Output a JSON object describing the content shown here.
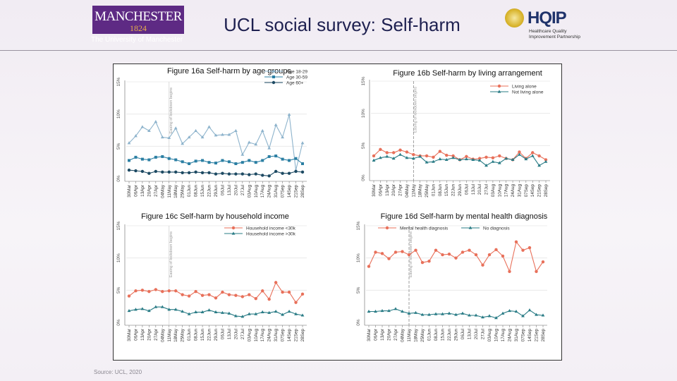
{
  "header": {
    "title": "UCL social survey: Self-harm",
    "logo_left": {
      "wordmark": "MANCHESTER",
      "year": "1824",
      "subtitle": "The University of Manchester"
    },
    "logo_right": {
      "wordmark": "HQIP",
      "subtitle": "Healthcare Quality Improvement Partnership"
    }
  },
  "footer": {
    "source": "Source: UCL, 2020"
  },
  "colors": {
    "orange": "#e8705a",
    "teal": "#2a7c86",
    "light_blue": "#8db3cc",
    "mid_blue": "#2b7fa3",
    "dark_blue": "#1d4a63"
  },
  "chart_data": [
    {
      "type": "line",
      "title": "Figure 16a Self-harm by age groups",
      "categories": [
        "30Mar",
        "06Apr",
        "13Apr",
        "20Apr",
        "27Apr",
        "04May",
        "11May",
        "18May",
        "25May",
        "01Jun",
        "08Jun",
        "15Jun",
        "22Jun",
        "29Jun",
        "06Jul",
        "13Jul",
        "20Jul",
        "27Jul",
        "03Aug",
        "10Aug",
        "17Aug",
        "24Aug",
        "31Aug",
        "07Sep",
        "14Sep",
        "21Sep",
        "28Sep"
      ],
      "yticks": [
        "0%",
        "5%",
        "10%",
        "15%"
      ],
      "ylim": [
        0,
        15
      ],
      "grid": true,
      "legend": "top-right",
      "annotation": {
        "text": "Easing of lockdown begins",
        "at": "11May"
      },
      "series": [
        {
          "name": "Age 18-29",
          "color": "#8db3cc",
          "marker": "triangle",
          "values": [
            5.5,
            6.6,
            8.0,
            7.4,
            8.8,
            6.4,
            6.3,
            7.8,
            5.4,
            6.4,
            7.4,
            6.4,
            8.0,
            6.7,
            6.8,
            6.8,
            7.4,
            3.7,
            5.6,
            5.3,
            7.4,
            4.7,
            8.3,
            6.4,
            9.9,
            1.3,
            5.5
          ]
        },
        {
          "name": "Age 30-59",
          "color": "#2b7fa3",
          "marker": "square",
          "values": [
            2.8,
            3.3,
            3.0,
            2.9,
            3.3,
            3.4,
            3.1,
            2.9,
            2.6,
            2.3,
            2.7,
            2.8,
            2.5,
            2.4,
            2.8,
            2.6,
            2.3,
            2.5,
            2.8,
            2.5,
            2.8,
            3.4,
            3.5,
            3.0,
            2.8,
            3.1,
            2.3
          ]
        },
        {
          "name": "Age 60+",
          "color": "#1d4a63",
          "marker": "circle",
          "values": [
            1.3,
            1.2,
            1.1,
            0.8,
            1.1,
            1.0,
            1.0,
            1.0,
            0.9,
            0.9,
            1.0,
            0.9,
            0.9,
            0.7,
            0.8,
            0.7,
            0.7,
            0.7,
            0.6,
            0.7,
            0.5,
            0.4,
            1.1,
            0.8,
            0.8,
            1.1,
            1.0
          ]
        }
      ]
    },
    {
      "type": "line",
      "title": "Figure 16b Self-harm by living arrangement",
      "categories": [
        "30Mar",
        "06Apr",
        "13Apr",
        "20Apr",
        "27Apr",
        "04May",
        "11May",
        "18May",
        "25May",
        "01Jun",
        "08Jun",
        "15Jun",
        "22Jun",
        "29Jun",
        "06Jul",
        "13Jul",
        "20Jul",
        "27Jul",
        "03Aug",
        "10Aug",
        "17Aug",
        "24Aug",
        "31Aug",
        "07Sep",
        "14Sep",
        "21Sep",
        "28Sep"
      ],
      "yticks": [
        "0%",
        "5%",
        "10%",
        "15%"
      ],
      "ylim": [
        0,
        15
      ],
      "grid": true,
      "legend": "top-right",
      "annotation": {
        "text": "Easing of lockdown begins",
        "at": "11May"
      },
      "series": [
        {
          "name": "Living alone",
          "color": "#e8705a",
          "marker": "circle",
          "values": [
            3.4,
            4.4,
            3.9,
            3.9,
            4.3,
            4.0,
            3.6,
            3.4,
            3.4,
            3.2,
            4.1,
            3.5,
            3.4,
            2.8,
            3.3,
            2.9,
            3.0,
            3.2,
            3.1,
            3.4,
            3.0,
            2.8,
            4.0,
            3.0,
            3.9,
            3.4,
            2.8
          ]
        },
        {
          "name": "Not living alone",
          "color": "#2a7c86",
          "marker": "triangle",
          "values": [
            2.7,
            3.1,
            3.3,
            3.0,
            3.6,
            3.1,
            3.0,
            3.3,
            2.4,
            2.5,
            2.9,
            2.8,
            3.1,
            2.8,
            2.9,
            2.8,
            2.7,
            1.9,
            2.5,
            2.3,
            3.0,
            2.8,
            3.6,
            2.9,
            3.4,
            1.9,
            2.5
          ]
        }
      ]
    },
    {
      "type": "line",
      "title": "Figure 16c Self-harm by household income",
      "categories": [
        "30Mar",
        "06Apr",
        "13Apr",
        "20Apr",
        "27Apr",
        "04May",
        "11May",
        "18May",
        "25May",
        "01Jun",
        "08Jun",
        "15Jun",
        "22Jun",
        "29Jun",
        "06Jul",
        "13Jul",
        "20Jul",
        "27Jul",
        "03Aug",
        "10Aug",
        "17Aug",
        "24Aug",
        "31Aug",
        "07Sep",
        "14Sep",
        "21Sep",
        "28Sep"
      ],
      "yticks": [
        "0%",
        "5%",
        "10%",
        "15%"
      ],
      "ylim": [
        0,
        15
      ],
      "grid": true,
      "legend": "top-right",
      "annotation": {
        "text": "Easing of lockdown begins",
        "at": "11May"
      },
      "series": [
        {
          "name": "Household income <30k",
          "color": "#e8705a",
          "marker": "circle",
          "values": [
            4.1,
            4.9,
            5.0,
            4.8,
            5.1,
            4.8,
            4.9,
            4.9,
            4.3,
            4.1,
            4.8,
            4.2,
            4.3,
            3.8,
            4.7,
            4.3,
            4.2,
            4.0,
            4.3,
            3.7,
            4.9,
            3.6,
            6.2,
            4.7,
            4.7,
            3.1,
            4.4
          ]
        },
        {
          "name": "Household income >30k",
          "color": "#2a7c86",
          "marker": "triangle",
          "values": [
            1.8,
            2.0,
            2.1,
            1.8,
            2.4,
            2.4,
            2.0,
            2.0,
            1.7,
            1.3,
            1.6,
            1.6,
            1.9,
            1.6,
            1.5,
            1.4,
            1.0,
            0.9,
            1.3,
            1.3,
            1.6,
            1.5,
            1.7,
            1.2,
            1.7,
            1.3,
            1.1
          ]
        }
      ]
    },
    {
      "type": "line",
      "title": "Figure 16d Self-harm by mental health diagnosis",
      "categories": [
        "30Mar",
        "06Apr",
        "13Apr",
        "20Apr",
        "27Apr",
        "04May",
        "11May",
        "18May",
        "25May",
        "01Jun",
        "08Jun",
        "15Jun",
        "22Jun",
        "29Jun",
        "06Jul",
        "13Jul",
        "20Jul",
        "27Jul",
        "03Aug",
        "10Aug",
        "17Aug",
        "24Aug",
        "31Aug",
        "07Sep",
        "14Sep",
        "21Sep",
        "28Sep"
      ],
      "yticks": [
        "0%",
        "5%",
        "10%",
        "15%"
      ],
      "ylim": [
        0,
        15
      ],
      "grid": true,
      "legend": "top",
      "annotation": {
        "text": "Easing of lockdown begins",
        "at": "11May"
      },
      "series": [
        {
          "name": "Mental health diagnosis",
          "color": "#e8705a",
          "marker": "circle",
          "values": [
            8.7,
            10.9,
            10.7,
            9.9,
            10.9,
            11.0,
            10.5,
            11.2,
            9.3,
            9.5,
            11.2,
            10.5,
            10.6,
            10.0,
            10.9,
            11.2,
            10.5,
            8.9,
            10.5,
            11.3,
            10.3,
            7.9,
            12.5,
            11.2,
            11.6,
            7.9,
            9.4
          ]
        },
        {
          "name": "No diagnosis",
          "color": "#2a7c86",
          "marker": "triangle",
          "values": [
            1.7,
            1.7,
            1.8,
            1.8,
            2.1,
            1.7,
            1.4,
            1.5,
            1.2,
            1.2,
            1.3,
            1.3,
            1.4,
            1.2,
            1.4,
            1.1,
            1.1,
            0.8,
            1.0,
            0.7,
            1.4,
            1.8,
            1.7,
            1.0,
            1.9,
            1.2,
            1.1
          ]
        }
      ]
    }
  ]
}
